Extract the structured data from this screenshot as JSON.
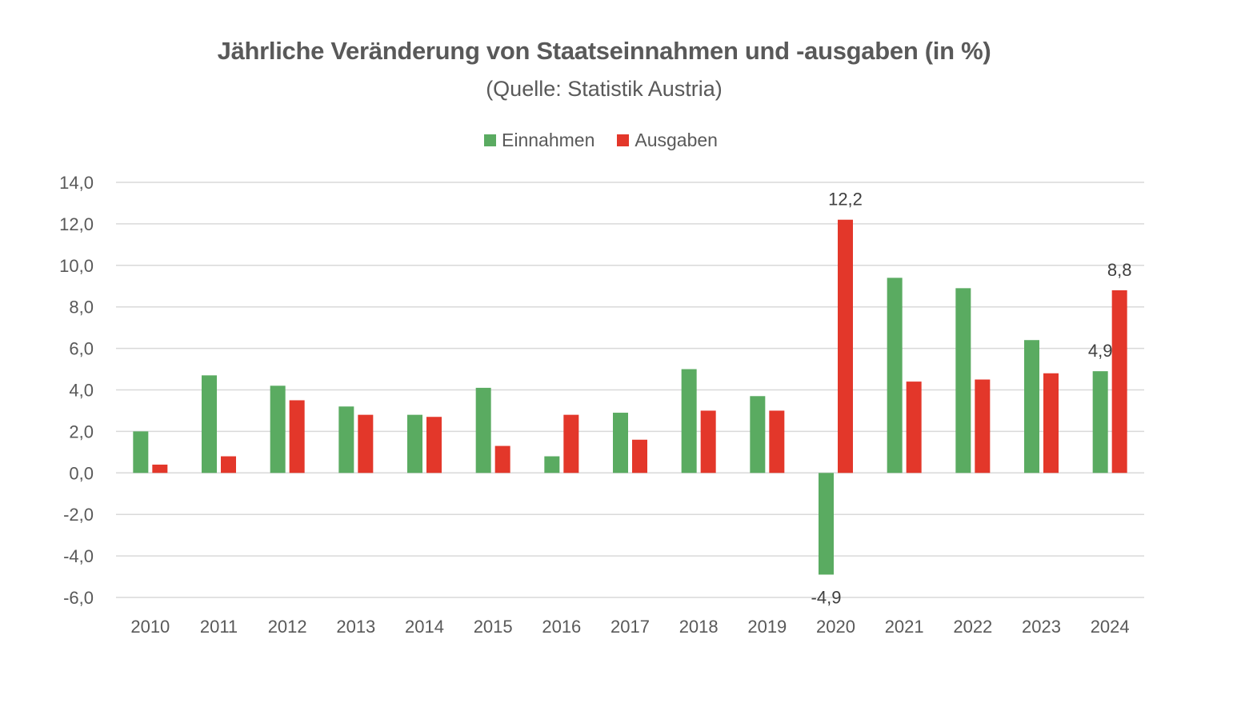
{
  "chart_data": {
    "type": "bar",
    "title": "Jährliche Veränderung von Staatseinnahmen und -ausgaben (in %)",
    "subtitle": "(Quelle: Statistik Austria)",
    "xlabel": "",
    "ylabel": "",
    "ylim": [
      -6,
      14
    ],
    "ytick_step": 2,
    "ytick_labels": [
      "14,0",
      "12,0",
      "10,0",
      "8,0",
      "6,0",
      "4,0",
      "2,0",
      "0,0",
      "-2,0",
      "-4,0",
      "-6,0"
    ],
    "grid": true,
    "legend_position": "top-center",
    "categories": [
      "2010",
      "2011",
      "2012",
      "2013",
      "2014",
      "2015",
      "2016",
      "2017",
      "2018",
      "2019",
      "2020",
      "2021",
      "2022",
      "2023",
      "2024"
    ],
    "series": [
      {
        "name": "Einnahmen",
        "color": "#5aab61",
        "values": [
          2.0,
          4.7,
          4.2,
          3.2,
          2.8,
          4.1,
          0.8,
          2.9,
          5.0,
          3.7,
          -4.9,
          9.4,
          8.9,
          6.4,
          4.9
        ]
      },
      {
        "name": "Ausgaben",
        "color": "#e3372a",
        "values": [
          0.4,
          0.8,
          3.5,
          2.8,
          2.7,
          1.3,
          2.8,
          1.6,
          3.0,
          3.0,
          12.2,
          4.4,
          4.5,
          4.8,
          8.8
        ]
      }
    ],
    "annotations": [
      {
        "series": "Einnahmen",
        "category": "2020",
        "label": "-4,9"
      },
      {
        "series": "Ausgaben",
        "category": "2020",
        "label": "12,2"
      },
      {
        "series": "Einnahmen",
        "category": "2024",
        "label": "4,9"
      },
      {
        "series": "Ausgaben",
        "category": "2024",
        "label": "8,8"
      }
    ]
  },
  "colors": {
    "grid": "#d9d9d9",
    "text": "#595959",
    "label": "#404040"
  }
}
